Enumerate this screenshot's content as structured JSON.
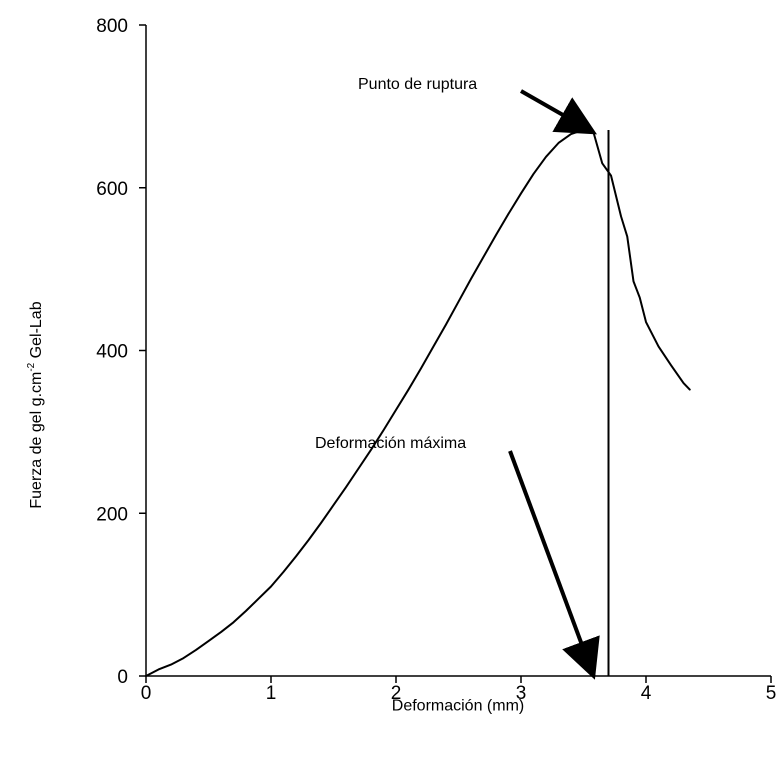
{
  "chart_data": {
    "type": "line",
    "title": "",
    "xlabel": "Deformación (mm)",
    "ylabel": {
      "main": "Fuerza de gel g.cm",
      "superscript": "-2",
      "suffix": " Gel-Lab"
    },
    "xlim": [
      0,
      5
    ],
    "ylim": [
      0,
      800
    ],
    "xticks": [
      0,
      1,
      2,
      3,
      4,
      5
    ],
    "yticks": [
      0,
      200,
      400,
      600,
      800
    ],
    "grid": false,
    "legend": "none",
    "series": [
      {
        "color": "#000000",
        "points": [
          [
            0,
            0
          ],
          [
            0.1,
            8
          ],
          [
            0.2,
            14
          ],
          [
            0.3,
            22
          ],
          [
            0.4,
            32
          ],
          [
            0.5,
            43
          ],
          [
            0.6,
            54
          ],
          [
            0.7,
            66
          ],
          [
            0.8,
            80
          ],
          [
            0.9,
            95
          ],
          [
            1.0,
            110
          ],
          [
            1.1,
            128
          ],
          [
            1.2,
            147
          ],
          [
            1.3,
            167
          ],
          [
            1.4,
            188
          ],
          [
            1.5,
            210
          ],
          [
            1.6,
            232
          ],
          [
            1.7,
            255
          ],
          [
            1.8,
            278
          ],
          [
            1.9,
            302
          ],
          [
            2.0,
            327
          ],
          [
            2.1,
            352
          ],
          [
            2.2,
            378
          ],
          [
            2.3,
            405
          ],
          [
            2.4,
            432
          ],
          [
            2.5,
            460
          ],
          [
            2.6,
            488
          ],
          [
            2.7,
            515
          ],
          [
            2.8,
            542
          ],
          [
            2.9,
            568
          ],
          [
            3.0,
            593
          ],
          [
            3.1,
            617
          ],
          [
            3.2,
            638
          ],
          [
            3.3,
            655
          ],
          [
            3.4,
            666
          ],
          [
            3.5,
            671
          ],
          [
            3.58,
            668
          ],
          [
            3.65,
            630
          ],
          [
            3.72,
            615
          ],
          [
            3.8,
            565
          ],
          [
            3.85,
            540
          ],
          [
            3.9,
            485
          ],
          [
            3.95,
            465
          ],
          [
            4.0,
            435
          ],
          [
            4.1,
            405
          ],
          [
            4.2,
            382
          ],
          [
            4.3,
            360
          ],
          [
            4.35,
            352
          ]
        ]
      }
    ],
    "annotations": [
      {
        "text": "Punto de ruptura",
        "arrow_to": [
          3.58,
          668
        ]
      },
      {
        "text": "Deformación máxima",
        "arrow_to": [
          3.58,
          0
        ]
      }
    ],
    "vertical_line_x": 3.7
  }
}
